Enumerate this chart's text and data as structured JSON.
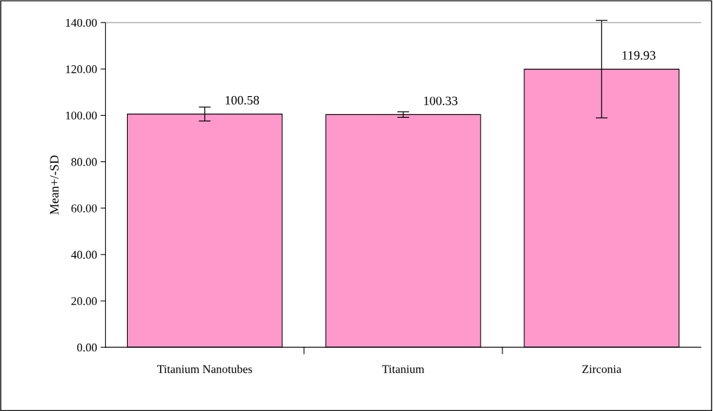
{
  "chart_data": {
    "type": "bar",
    "ylabel": "Mean+/-SD",
    "categories": [
      "Titanium Nanotubes",
      "Titanium",
      "Zirconia"
    ],
    "values": [
      100.58,
      100.33,
      119.93
    ],
    "errors": [
      3.0,
      1.2,
      21
    ],
    "color": "#ff99cc",
    "data_labels": true,
    "ylim": [
      0,
      140
    ],
    "yticks": [
      {
        "value": 0,
        "label": "0.00"
      },
      {
        "value": 20,
        "label": "20.00"
      },
      {
        "value": 40,
        "label": "40.00"
      },
      {
        "value": 60,
        "label": "60.00"
      },
      {
        "value": 80,
        "label": "80.00"
      },
      {
        "value": 100,
        "label": "100.00"
      },
      {
        "value": 120,
        "label": "120.00"
      },
      {
        "value": 140,
        "label": "140.00"
      }
    ],
    "grid": false,
    "legend": false
  }
}
